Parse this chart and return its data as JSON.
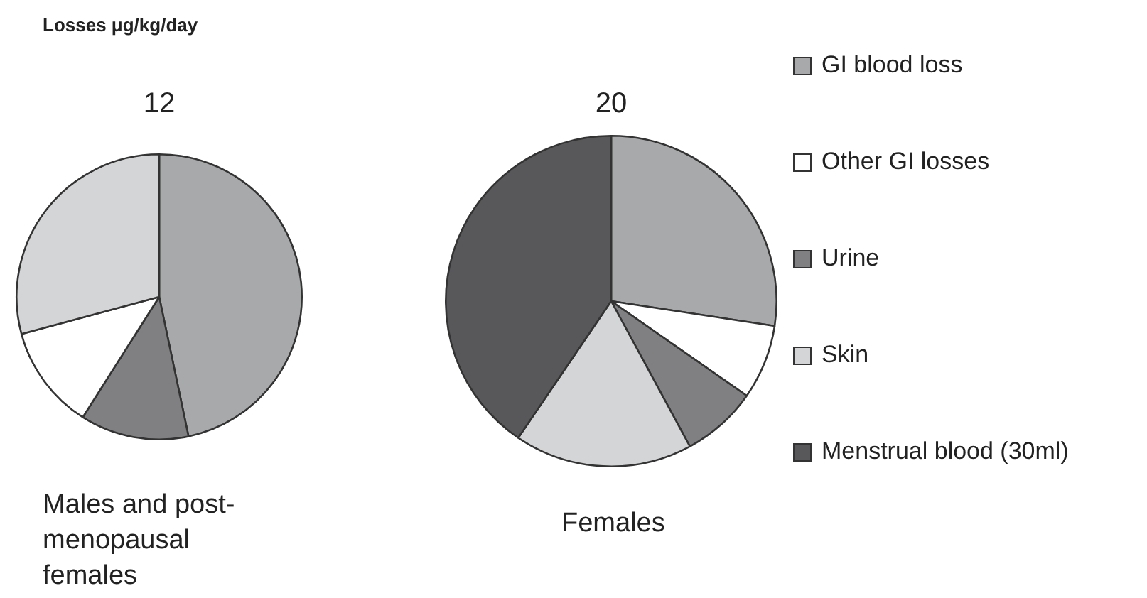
{
  "chart_data": [
    {
      "type": "pie",
      "title": "Losses μg/kg/day",
      "subtitle": "12",
      "xlabel": "Males and post-menopausal females",
      "legend": false,
      "categories": [
        null,
        null,
        null,
        null
      ],
      "values": [
        46.7,
        12.3,
        11.8,
        29.2
      ],
      "colors": [
        "#a8a9ab",
        "#808083",
        "#ffffff",
        "#d4d5d7"
      ]
    },
    {
      "type": "pie",
      "subtitle": "20",
      "xlabel": "Females",
      "legend": "right",
      "categories": [
        "GI blood loss",
        "Other GI losses",
        "Urine",
        "Skin",
        "Menstrual blood (30ml)"
      ],
      "values": [
        27.4,
        7.3,
        7.4,
        17.4,
        40.5
      ],
      "colors": [
        "#a8a9ab",
        "#ffffff",
        "#808083",
        "#d4d5d7",
        "#58585a"
      ]
    }
  ]
}
